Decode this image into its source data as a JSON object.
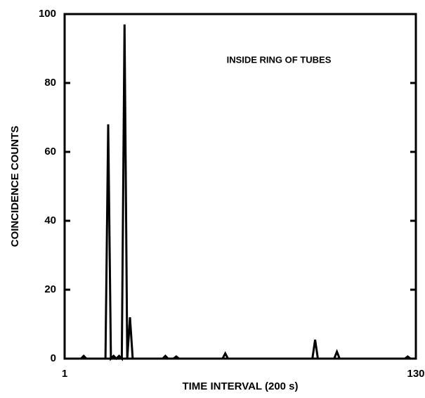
{
  "chart_data": {
    "type": "line",
    "title": null,
    "annotation": "INSIDE RING OF TUBES",
    "x_label": "TIME INTERVAL (200 s)",
    "y_label": "COINCIDENCE COUNTS",
    "x": [
      1,
      7,
      8,
      9,
      16,
      17,
      18,
      19,
      20,
      21,
      22,
      23,
      24,
      25,
      26,
      37,
      38,
      39,
      41,
      42,
      43,
      59,
      60,
      61,
      92,
      93,
      94,
      100,
      101,
      102,
      126,
      127,
      128,
      130
    ],
    "series": [
      {
        "name": null,
        "color": "#000000",
        "values": [
          0,
          0,
          0.8,
          0,
          0,
          68,
          0,
          0.8,
          0,
          0.8,
          0,
          97,
          0,
          12,
          0,
          0,
          0.8,
          0,
          0,
          0.6,
          0,
          0,
          1.5,
          0,
          0,
          5.5,
          0,
          0,
          2,
          0,
          0,
          0.6,
          0,
          0
        ]
      }
    ],
    "xlim": [
      1,
      130
    ],
    "xticks": [
      1,
      130
    ],
    "ylim": [
      0,
      100
    ],
    "yticks": [
      0,
      20,
      40,
      60,
      80,
      100
    ],
    "grid": false
  }
}
